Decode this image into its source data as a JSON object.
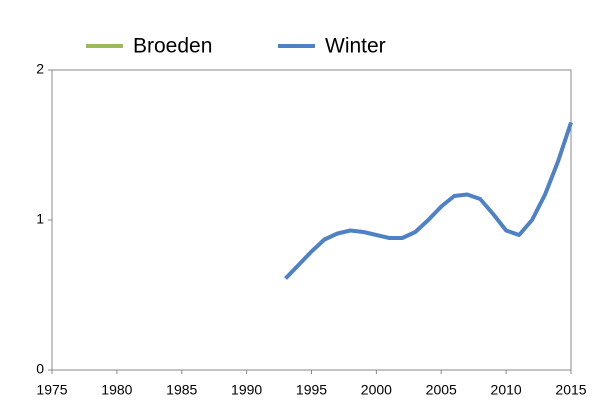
{
  "chart_data": {
    "type": "line",
    "x": [
      1993,
      1994,
      1995,
      1996,
      1997,
      1998,
      1999,
      2000,
      2001,
      2002,
      2003,
      2004,
      2005,
      2006,
      2007,
      2008,
      2009,
      2010,
      2011,
      2012,
      2013,
      2014,
      2015
    ],
    "series": [
      {
        "name": "Broeden",
        "color": "#9bbb59",
        "values": [
          null,
          null,
          null,
          null,
          null,
          null,
          null,
          null,
          null,
          null,
          null,
          null,
          null,
          null,
          null,
          null,
          null,
          null,
          null,
          null,
          null,
          null,
          null
        ]
      },
      {
        "name": "Winter",
        "color": "#4f81c6",
        "values": [
          0.61,
          0.7,
          0.79,
          0.87,
          0.91,
          0.93,
          0.92,
          0.9,
          0.88,
          0.88,
          0.92,
          1.0,
          1.09,
          1.16,
          1.17,
          1.14,
          1.04,
          0.93,
          0.9,
          1.0,
          1.17,
          1.39,
          1.65
        ]
      }
    ],
    "xlim": [
      1975,
      2015
    ],
    "xticks": [
      1975,
      1980,
      1985,
      1990,
      1995,
      2000,
      2005,
      2010,
      2015
    ],
    "ylim": [
      0,
      2
    ],
    "yticks": [
      0,
      1,
      2
    ],
    "grid": false,
    "legend": "top"
  }
}
